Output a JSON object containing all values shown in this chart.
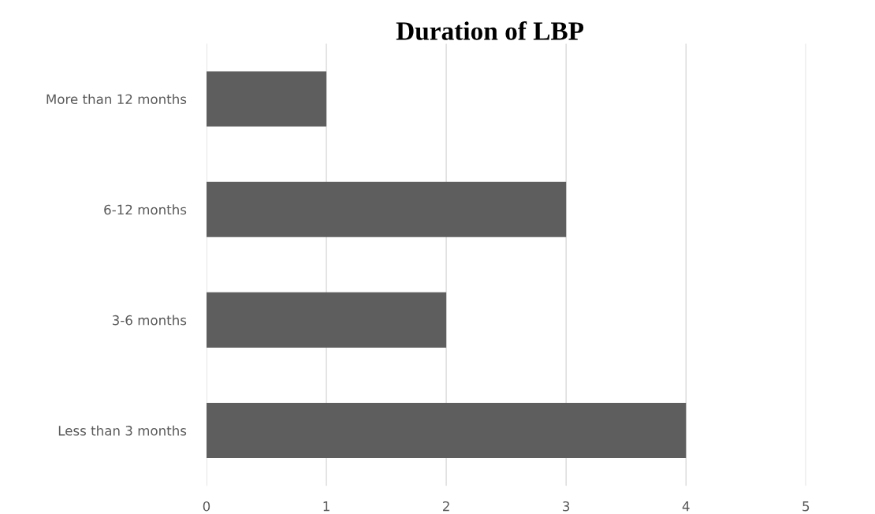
{
  "chart_data": {
    "type": "bar",
    "orientation": "horizontal",
    "title": "Duration of LBP",
    "categories": [
      "More than 12 months",
      "6-12 months",
      "3-6 months",
      "Less than 3 months"
    ],
    "values": [
      1,
      3,
      2,
      4
    ],
    "color": "#5e5e5e",
    "xlim": [
      0,
      5
    ],
    "xticks": [
      0,
      1,
      2,
      3,
      4,
      5
    ],
    "grid": "x",
    "legend": false
  }
}
